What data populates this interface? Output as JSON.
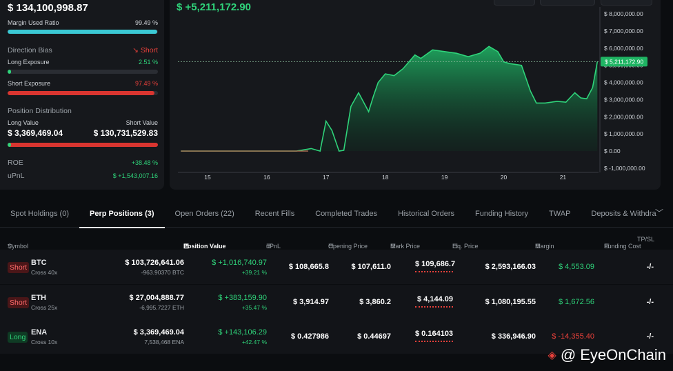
{
  "account": {
    "balance": "$ 134,100,998.87",
    "margin_used_label": "Margin Used Ratio",
    "margin_used_value": "99.49 %",
    "margin_used_fraction": 0.9949,
    "direction_bias_label": "Direction Bias",
    "direction_bias_value": "Short",
    "long_exposure_label": "Long Exposure",
    "long_exposure_value": "2.51 %",
    "long_exposure_fraction": 0.0251,
    "short_exposure_label": "Short Exposure",
    "short_exposure_value": "97.49 %",
    "short_exposure_fraction": 0.9749,
    "position_distribution_label": "Position Distribution",
    "long_value_label": "Long Value",
    "long_value": "$ 3,369,469.04",
    "short_value_label": "Short Value",
    "short_value": "$ 130,731,529.83",
    "long_value_fraction": 0.0251,
    "roe_label": "ROE",
    "roe_value": "+38.48 %",
    "upnl_label": "uPnL",
    "upnl_value": "$ +1,543,007.16"
  },
  "chart": {
    "pnl_headline": "$ +5,211,172.90",
    "current_label": "$ 5,211,172.90"
  },
  "chart_data": {
    "type": "area",
    "title": "$ +5,211,172.90",
    "xlabel": "",
    "ylabel": "",
    "x_ticks": [
      "15",
      "16",
      "17",
      "18",
      "19",
      "20",
      "21"
    ],
    "x_tick_values": [
      15,
      16,
      17,
      18,
      19,
      20,
      21
    ],
    "y_ticks": [
      "$ 8,000,000.00",
      "$ 7,000,000.00",
      "$ 6,000,000.00",
      "$ 5,000,000.00",
      "$ 4,000,000.00",
      "$ 3,000,000.00",
      "$ 2,000,000.00",
      "$ 1,000,000.00",
      "$ 0.00",
      "$ -1,000,000.00"
    ],
    "y_tick_values": [
      8000000,
      7000000,
      6000000,
      5000000,
      4000000,
      3000000,
      2000000,
      1000000,
      0,
      -1000000
    ],
    "xlim": [
      14.5,
      21.6
    ],
    "ylim": [
      -1000000,
      8000000
    ],
    "reference_value": 5211172.9,
    "series": [
      {
        "name": "PnL",
        "x": [
          14.55,
          15.0,
          15.5,
          16.0,
          16.5,
          16.75,
          16.9,
          17.0,
          17.1,
          17.22,
          17.3,
          17.42,
          17.55,
          17.72,
          17.8,
          17.88,
          18.0,
          18.15,
          18.3,
          18.5,
          18.6,
          18.8,
          19.0,
          19.2,
          19.4,
          19.6,
          19.75,
          19.9,
          20.0,
          20.1,
          20.3,
          20.45,
          20.55,
          20.7,
          20.9,
          21.05,
          21.2,
          21.3,
          21.4,
          21.5,
          21.58
        ],
        "y": [
          0,
          0,
          0,
          0,
          0,
          150000,
          0,
          1750000,
          1200000,
          0,
          50000,
          2600000,
          3400000,
          2300000,
          3200000,
          4000000,
          4500000,
          4400000,
          4800000,
          5600000,
          5400000,
          5900000,
          5800000,
          5700000,
          5500000,
          5700000,
          6100000,
          5800000,
          5200000,
          5100000,
          5000000,
          3500000,
          2800000,
          2800000,
          2900000,
          2850000,
          3400000,
          3100000,
          3050000,
          3700000,
          5211173
        ]
      }
    ],
    "colors": {
      "line": "#2fd37a",
      "flat_line": "#b06a4f"
    }
  },
  "tabs": [
    {
      "label": "Spot Holdings (0)",
      "active": false
    },
    {
      "label": "Perp Positions (3)",
      "active": true
    },
    {
      "label": "Open Orders (22)",
      "active": false
    },
    {
      "label": "Recent Fills",
      "active": false
    },
    {
      "label": "Completed Trades",
      "active": false
    },
    {
      "label": "Historical Orders",
      "active": false
    },
    {
      "label": "Funding History",
      "active": false
    },
    {
      "label": "TWAP",
      "active": false
    },
    {
      "label": "Deposits & Withdra",
      "active": false
    }
  ],
  "table": {
    "headers": {
      "symbol": "Symbol",
      "position_value": "Position Value",
      "upnl": "uPnL",
      "opening_price": "Opening Price",
      "mark_price": "Mark Price",
      "liq_price": "Liq. Price",
      "margin": "Margin",
      "funding_cost": "Funding Cost",
      "tpsl": "TP/SL"
    },
    "rows": [
      {
        "side": "Short",
        "symbol": "BTC",
        "leverage": "Cross 40x",
        "position_value": "$ 103,726,641.06",
        "size": "-963.90370 BTC",
        "upnl": "$ +1,016,740.97",
        "upnl_pct": "+39.21 %",
        "opening_price": "$ 108,665.8",
        "mark_price": "$ 107,611.0",
        "liq_price": "$ 109,686.7",
        "margin": "$ 2,593,166.03",
        "funding_cost": "$ 4,553.09",
        "tpsl": "-/-"
      },
      {
        "side": "Short",
        "symbol": "ETH",
        "leverage": "Cross 25x",
        "position_value": "$ 27,004,888.77",
        "size": "-6,995.7227 ETH",
        "upnl": "$ +383,159.90",
        "upnl_pct": "+35.47 %",
        "opening_price": "$ 3,914.97",
        "mark_price": "$ 3,860.2",
        "liq_price": "$ 4,144.09",
        "margin": "$ 1,080,195.55",
        "funding_cost": "$ 1,672.56",
        "tpsl": "-/-"
      },
      {
        "side": "Long",
        "symbol": "ENA",
        "leverage": "Cross 10x",
        "position_value": "$ 3,369,469.04",
        "size": "7,538,468 ENA",
        "upnl": "$ +143,106.29",
        "upnl_pct": "+42.47 %",
        "opening_price": "$ 0.427986",
        "mark_price": "$ 0.44697",
        "liq_price": "$ 0.164103",
        "margin": "$ 336,946.90",
        "funding_cost": "$ -14,355.40",
        "tpsl": "-/-"
      }
    ]
  },
  "watermark": "@ EyeOnChain"
}
